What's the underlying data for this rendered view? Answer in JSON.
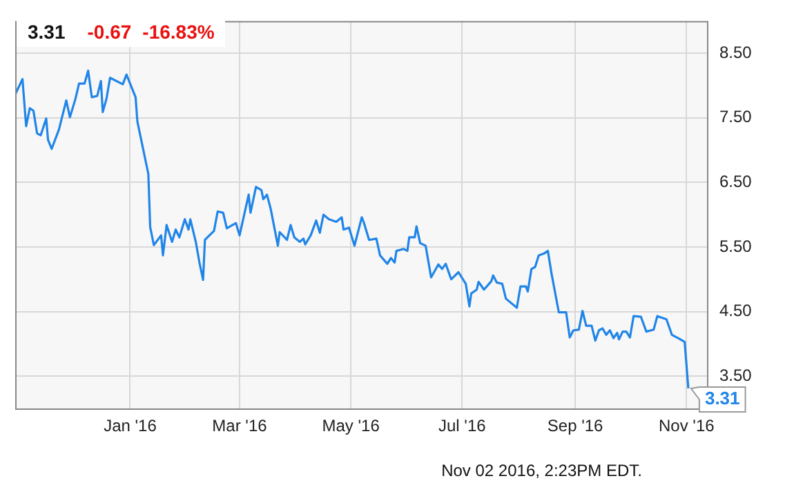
{
  "chart_data": {
    "type": "line",
    "annotations": [
      "3.31",
      "-0.67",
      "-16.83%",
      {
        "text": "3.31",
        "x": "2016-11-02",
        "y": 3.31
      },
      "Nov 02 2016, 2:23PM EDT."
    ],
    "x": [
      "2015-10-30",
      "2015-11-03",
      "2015-11-05",
      "2015-11-07",
      "2015-11-09",
      "2015-11-11",
      "2015-11-13",
      "2015-11-16",
      "2015-11-17",
      "2015-11-19",
      "2015-11-23",
      "2015-11-27",
      "2015-11-29",
      "2015-12-02",
      "2015-12-04",
      "2015-12-07",
      "2015-12-09",
      "2015-12-11",
      "2015-12-14",
      "2015-12-16",
      "2015-12-17",
      "2015-12-19",
      "2015-12-21",
      "2015-12-28",
      "2015-12-30",
      "2016-01-04",
      "2016-01-05",
      "2016-01-11",
      "2016-01-12",
      "2016-01-14",
      "2016-01-18",
      "2016-01-19",
      "2016-01-21",
      "2016-01-24",
      "2016-01-26",
      "2016-01-28",
      "2016-01-31",
      "2016-02-02",
      "2016-02-03",
      "2016-02-06",
      "2016-02-08",
      "2016-02-10",
      "2016-02-11",
      "2016-02-16",
      "2016-02-18",
      "2016-02-21",
      "2016-02-23",
      "2016-02-28",
      "2016-03-01",
      "2016-03-06",
      "2016-03-07",
      "2016-03-10",
      "2016-03-13",
      "2016-03-14",
      "2016-03-16",
      "2016-03-18",
      "2016-03-22",
      "2016-03-23",
      "2016-03-27",
      "2016-03-29",
      "2016-03-31",
      "2016-04-03",
      "2016-04-05",
      "2016-04-06",
      "2016-04-09",
      "2016-04-12",
      "2016-04-14",
      "2016-04-16",
      "2016-04-19",
      "2016-04-23",
      "2016-04-26",
      "2016-04-27",
      "2016-04-30",
      "2016-05-03",
      "2016-05-07",
      "2016-05-08",
      "2016-05-11",
      "2016-05-15",
      "2016-05-17",
      "2016-05-21",
      "2016-05-23",
      "2016-05-25",
      "2016-05-26",
      "2016-05-30",
      "2016-06-01",
      "2016-06-02",
      "2016-06-05",
      "2016-06-06",
      "2016-06-08",
      "2016-06-11",
      "2016-06-14",
      "2016-06-18",
      "2016-06-20",
      "2016-06-22",
      "2016-06-25",
      "2016-06-29",
      "2016-07-03",
      "2016-07-05",
      "2016-07-06",
      "2016-07-09",
      "2016-07-10",
      "2016-07-13",
      "2016-07-17",
      "2016-07-18",
      "2016-07-20",
      "2016-07-23",
      "2016-07-25",
      "2016-07-31",
      "2016-08-02",
      "2016-08-05",
      "2016-08-06",
      "2016-08-08",
      "2016-08-10",
      "2016-08-12",
      "2016-08-15",
      "2016-08-17",
      "2016-08-19",
      "2016-08-23",
      "2016-08-27",
      "2016-08-29",
      "2016-08-31",
      "2016-09-03",
      "2016-09-05",
      "2016-09-07",
      "2016-09-10",
      "2016-09-12",
      "2016-09-14",
      "2016-09-16",
      "2016-09-18",
      "2016-09-20",
      "2016-09-22",
      "2016-09-24",
      "2016-09-25",
      "2016-09-27",
      "2016-09-29",
      "2016-10-01",
      "2016-10-03",
      "2016-10-07",
      "2016-10-10",
      "2016-10-14",
      "2016-10-16",
      "2016-10-21",
      "2016-10-24",
      "2016-10-28",
      "2016-10-31",
      "2016-11-02"
    ],
    "series": [
      {
        "color": "#2185e8",
        "values": [
          7.86,
          8.1,
          7.37,
          7.65,
          7.61,
          7.26,
          7.23,
          7.49,
          7.16,
          7.02,
          7.32,
          7.77,
          7.51,
          7.79,
          8.03,
          8.03,
          8.23,
          7.82,
          7.84,
          8.07,
          7.59,
          7.79,
          8.12,
          8.02,
          8.17,
          7.82,
          7.44,
          6.63,
          5.81,
          5.53,
          5.68,
          5.37,
          5.84,
          5.58,
          5.77,
          5.65,
          5.93,
          5.77,
          5.93,
          5.58,
          5.26,
          4.99,
          5.61,
          5.75,
          6.05,
          6.03,
          5.79,
          5.87,
          5.68,
          6.31,
          6.03,
          6.43,
          6.38,
          6.24,
          6.31,
          6.1,
          5.52,
          5.73,
          5.61,
          5.84,
          5.65,
          5.58,
          5.63,
          5.54,
          5.68,
          5.91,
          5.72,
          6.0,
          5.93,
          5.89,
          5.96,
          5.77,
          5.8,
          5.52,
          5.96,
          5.89,
          5.61,
          5.63,
          5.37,
          5.24,
          5.33,
          5.26,
          5.44,
          5.47,
          5.44,
          5.65,
          5.65,
          5.82,
          5.56,
          5.52,
          5.03,
          5.23,
          5.16,
          5.24,
          5.0,
          5.11,
          4.93,
          4.58,
          4.78,
          4.84,
          4.96,
          4.84,
          4.97,
          5.06,
          4.95,
          4.93,
          4.7,
          4.56,
          4.89,
          4.89,
          4.81,
          5.16,
          5.19,
          5.37,
          5.4,
          5.44,
          5.09,
          4.49,
          4.49,
          4.1,
          4.21,
          4.22,
          4.51,
          4.28,
          4.28,
          4.05,
          4.21,
          4.24,
          4.14,
          4.21,
          4.09,
          4.17,
          4.07,
          4.19,
          4.19,
          4.1,
          4.43,
          4.42,
          4.19,
          4.22,
          4.43,
          4.38,
          4.14,
          4.08,
          4.03,
          3.31
        ]
      }
    ],
    "xlim": [
      "2015-10-30",
      "2016-11-13"
    ],
    "xticks": [
      {
        "value": "2016-01-01",
        "label": "Jan '16"
      },
      {
        "value": "2016-03-01",
        "label": "Mar '16"
      },
      {
        "value": "2016-05-01",
        "label": "May '16"
      },
      {
        "value": "2016-07-01",
        "label": "Jul '16"
      },
      {
        "value": "2016-09-01",
        "label": "Sep '16"
      },
      {
        "value": "2016-11-01",
        "label": "Nov '16"
      }
    ],
    "ylim": [
      3.0,
      9.0
    ],
    "yticks": [
      {
        "value": 3.5,
        "label": "3.50"
      },
      {
        "value": 4.5,
        "label": "4.50"
      },
      {
        "value": 5.5,
        "label": "5.50"
      },
      {
        "value": 6.5,
        "label": "6.50"
      },
      {
        "value": 7.5,
        "label": "7.50"
      },
      {
        "value": 8.5,
        "label": "8.50"
      }
    ],
    "grid": true,
    "legend": false,
    "marker": "none",
    "line_style": "solid"
  }
}
